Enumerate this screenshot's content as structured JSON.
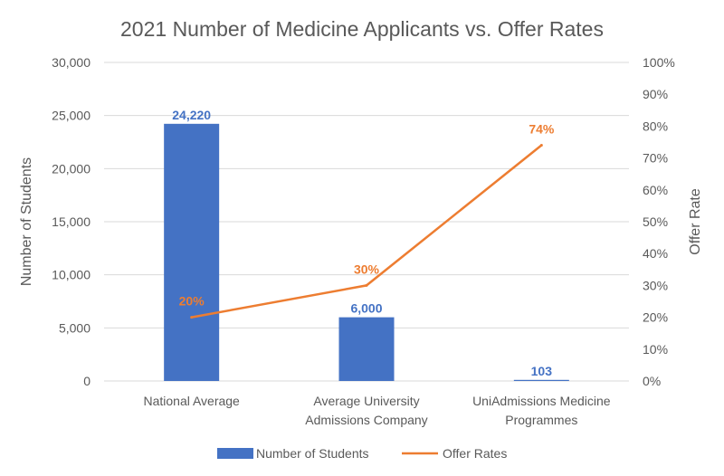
{
  "chart_data": {
    "type": "bar",
    "title": "2021 Number of Medicine Applicants vs. Offer Rates",
    "categories": [
      [
        "National Average"
      ],
      [
        "Average University",
        "Admissions Company"
      ],
      [
        "UniAdmissions Medicine",
        "Programmes"
      ]
    ],
    "ylabel_left": "Number of Students",
    "ylabel_right": "Offer Rate",
    "ylim_left": [
      0,
      30000
    ],
    "ylim_right": [
      0,
      100
    ],
    "yticks_left": [
      "0",
      "5,000",
      "10,000",
      "15,000",
      "20,000",
      "25,000",
      "30,000"
    ],
    "yticks_right": [
      "0%",
      "10%",
      "20%",
      "30%",
      "40%",
      "50%",
      "60%",
      "70%",
      "80%",
      "90%",
      "100%"
    ],
    "grid": true,
    "legend_placement": "bottom",
    "series": [
      {
        "name": "Number of Students",
        "type": "bar",
        "axis": "left",
        "color": "#4472C4",
        "values": [
          24220,
          6000,
          103
        ],
        "labels": [
          "24,220",
          "6,000",
          "103"
        ]
      },
      {
        "name": "Offer Rates",
        "type": "line",
        "axis": "right",
        "color": "#ED7D31",
        "values": [
          20,
          30,
          74
        ],
        "labels": [
          "20%",
          "30%",
          "74%"
        ]
      }
    ]
  }
}
